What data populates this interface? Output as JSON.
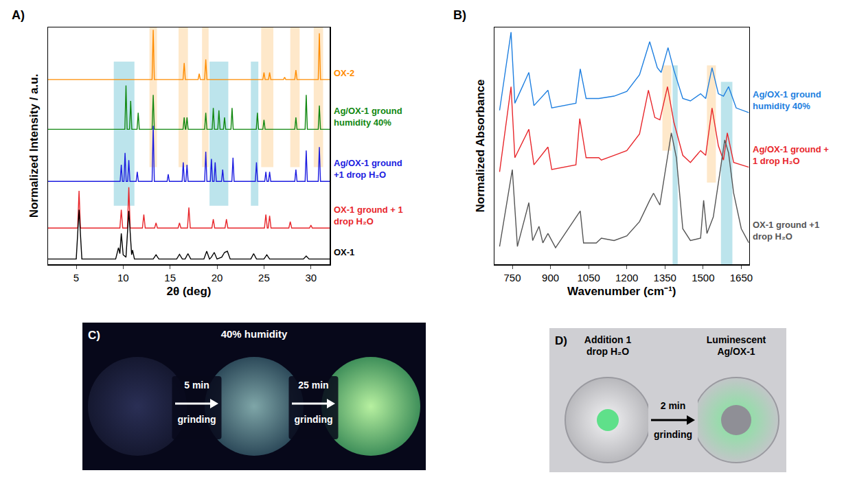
{
  "chart_data": [
    {
      "panel": "A)",
      "type": "line",
      "x_label": "2θ (deg)",
      "y_label": "Normalized Intensity / a.u.",
      "xlim": [
        2,
        32
      ],
      "xticks": [
        5,
        10,
        15,
        20,
        25,
        30
      ],
      "ylim": [
        0,
        10
      ],
      "yticks": [],
      "tick_labels": "x",
      "grid": false,
      "highlights": [
        {
          "x0": 9.0,
          "x1": 11.2,
          "y0": 2.47,
          "y1": 8.56,
          "color": "#a6dbe6"
        },
        {
          "x0": 19.2,
          "x1": 21.2,
          "y0": 2.47,
          "y1": 8.56,
          "color": "#a6dbe6"
        },
        {
          "x0": 23.6,
          "x1": 24.4,
          "y0": 2.47,
          "y1": 8.56,
          "color": "#a6dbe6"
        },
        {
          "x0": 12.8,
          "x1": 13.6,
          "y0": 4.1,
          "y1": 10,
          "color": "#fde0b8"
        },
        {
          "x0": 15.9,
          "x1": 16.9,
          "y0": 4.1,
          "y1": 10,
          "color": "#fde0b8"
        },
        {
          "x0": 18.4,
          "x1": 19.1,
          "y0": 4.1,
          "y1": 10,
          "color": "#fde0b8"
        },
        {
          "x0": 24.7,
          "x1": 26.0,
          "y0": 4.1,
          "y1": 10,
          "color": "#fde0b8"
        },
        {
          "x0": 27.8,
          "x1": 28.8,
          "y0": 4.1,
          "y1": 10,
          "color": "#fde0b8"
        },
        {
          "x0": 30.3,
          "x1": 31.3,
          "y0": 4.1,
          "y1": 10,
          "color": "#fde0b8"
        }
      ],
      "series": [
        {
          "name": "OX-2",
          "color": "#ff8c00",
          "x": [
            2,
            13.08,
            13.2,
            13.32,
            16.38,
            16.5,
            16.62,
            17.98,
            18.1,
            18.22,
            18.68,
            18.8,
            18.92,
            24.88,
            25.0,
            25.12,
            25.48,
            25.6,
            25.72,
            27.08,
            27.2,
            27.32,
            28.28,
            28.4,
            28.52,
            30.78,
            30.9,
            31.02,
            32
          ],
          "values": [
            7.8,
            7.8,
            9.9,
            7.8,
            7.8,
            8.5,
            7.8,
            7.8,
            8.05,
            7.8,
            7.8,
            8.65,
            7.8,
            7.8,
            8.1,
            7.8,
            7.8,
            8.1,
            7.8,
            7.8,
            7.9,
            7.8,
            7.8,
            8.2,
            7.8,
            7.8,
            9.75,
            7.8,
            7.8
          ]
        },
        {
          "name": "Ag/OX-1 ground humidity 40%",
          "color": "#118811",
          "x": [
            2,
            10.18,
            10.3,
            10.42,
            10.68,
            10.8,
            10.92,
            11.48,
            11.6,
            11.72,
            13.08,
            13.2,
            13.32,
            16.38,
            16.5,
            16.62,
            16.68,
            16.8,
            16.92,
            18.68,
            18.8,
            18.92,
            19.48,
            19.6,
            19.72,
            20.08,
            20.2,
            20.32,
            20.68,
            20.8,
            20.92,
            21.48,
            21.6,
            21.72,
            24.18,
            24.3,
            24.42,
            24.88,
            25.0,
            25.12,
            28.28,
            28.4,
            28.52,
            29.38,
            29.5,
            29.62,
            30.78,
            30.9,
            31.02,
            32
          ],
          "values": [
            5.7,
            5.7,
            7.55,
            5.7,
            5.7,
            6.9,
            5.7,
            5.7,
            6.4,
            5.7,
            5.7,
            7.15,
            5.7,
            5.7,
            6.2,
            5.7,
            5.7,
            6.2,
            5.7,
            5.7,
            6.4,
            5.7,
            5.7,
            6.6,
            5.7,
            5.7,
            6.5,
            5.7,
            5.7,
            6.2,
            5.7,
            5.7,
            6.6,
            5.7,
            5.7,
            6.4,
            5.7,
            5.7,
            6.1,
            5.7,
            5.7,
            6.2,
            5.7,
            5.7,
            7.15,
            5.7,
            5.7,
            6.7,
            5.7,
            5.7
          ]
        },
        {
          "name": "Ag/OX-1 ground +1 drop H₂O",
          "color": "#1c1ce0",
          "x": [
            2,
            9.68,
            9.8,
            9.92,
            10.08,
            10.2,
            10.32,
            10.48,
            10.6,
            10.72,
            11.38,
            11.5,
            11.62,
            13.08,
            13.2,
            13.32,
            14.68,
            14.8,
            14.92,
            16.28,
            16.4,
            16.52,
            16.68,
            16.8,
            16.92,
            18.68,
            18.8,
            18.92,
            19.28,
            19.4,
            19.52,
            19.68,
            19.8,
            19.92,
            20.48,
            20.6,
            20.72,
            21.58,
            21.7,
            21.82,
            24.08,
            24.2,
            24.32,
            25.08,
            25.2,
            25.32,
            25.48,
            25.6,
            25.72,
            28.28,
            28.4,
            28.52,
            29.38,
            29.5,
            29.62,
            30.78,
            30.9,
            31.02,
            32
          ],
          "values": [
            3.5,
            3.5,
            4.2,
            3.5,
            3.5,
            4.7,
            3.5,
            3.5,
            4.4,
            3.5,
            3.5,
            3.9,
            3.5,
            3.5,
            5.85,
            3.5,
            3.5,
            3.8,
            3.5,
            3.5,
            4.3,
            3.5,
            3.5,
            4.2,
            3.5,
            3.5,
            4.75,
            3.5,
            3.5,
            4.45,
            3.5,
            3.5,
            4.3,
            3.5,
            3.5,
            4.0,
            3.5,
            3.5,
            4.5,
            3.5,
            3.5,
            4.3,
            3.5,
            3.5,
            3.9,
            3.5,
            3.5,
            3.9,
            3.5,
            3.5,
            4.0,
            3.5,
            3.5,
            4.8,
            3.5,
            3.5,
            4.95,
            3.5,
            3.5
          ]
        },
        {
          "name": "OX-1 ground + 1 drop H₂O",
          "color": "#e8262b",
          "x": [
            2,
            5.15,
            5.3,
            5.45,
            9.65,
            9.8,
            9.95,
            10.45,
            10.6,
            10.75,
            12.05,
            12.2,
            12.35,
            13.35,
            13.5,
            13.65,
            15.85,
            16.0,
            16.15,
            16.85,
            17.0,
            17.15,
            19.45,
            19.6,
            19.75,
            20.85,
            21.0,
            21.15,
            25.05,
            25.2,
            25.35,
            25.45,
            25.6,
            25.75,
            27.65,
            27.8,
            27.95,
            29.85,
            30.0,
            30.15,
            32
          ],
          "values": [
            1.53,
            1.53,
            3.1,
            1.53,
            1.53,
            2.3,
            1.53,
            1.53,
            3.25,
            1.53,
            1.53,
            2.1,
            1.53,
            1.53,
            1.75,
            1.53,
            1.53,
            1.75,
            1.53,
            1.53,
            2.4,
            1.53,
            1.53,
            1.9,
            1.53,
            1.53,
            1.9,
            1.53,
            1.53,
            2.1,
            1.53,
            1.53,
            2.05,
            1.53,
            1.53,
            1.8,
            1.53,
            1.53,
            1.65,
            1.53,
            1.53
          ]
        },
        {
          "name": "OX-1",
          "color": "#000000",
          "x": [
            2,
            5.0,
            5.3,
            5.6,
            9.2,
            9.5,
            9.65,
            9.8,
            10.0,
            10.3,
            10.6,
            10.9,
            11.0,
            11.2,
            13.2,
            13.5,
            13.8,
            15.7,
            16.0,
            16.3,
            16.6,
            16.9,
            17.2,
            18.6,
            18.9,
            19.2,
            19.4,
            19.7,
            20.0,
            20.5,
            20.8,
            21.1,
            21.4,
            23.6,
            23.9,
            24.2,
            25.0,
            25.3,
            25.6,
            29.2,
            29.5,
            29.8,
            32
          ],
          "values": [
            0.22,
            0.22,
            2.3,
            0.22,
            0.22,
            0.7,
            0.45,
            1.3,
            0.4,
            0.3,
            2.25,
            0.4,
            0.6,
            0.22,
            0.22,
            0.4,
            0.22,
            0.22,
            0.42,
            0.22,
            0.22,
            0.45,
            0.22,
            0.22,
            0.55,
            0.22,
            0.3,
            0.5,
            0.22,
            0.3,
            0.5,
            0.55,
            0.22,
            0.22,
            0.45,
            0.22,
            0.22,
            0.4,
            0.22,
            0.22,
            0.35,
            0.22,
            0.22
          ]
        }
      ]
    },
    {
      "panel": "B)",
      "type": "line",
      "x_label": "Wavenumber (cm⁻¹)",
      "y_label": "Normalized Absorbance",
      "xlim": [
        680,
        1680
      ],
      "xticks": [
        750,
        900,
        1050,
        1200,
        1350,
        1500,
        1650
      ],
      "ylim": [
        0,
        10
      ],
      "yticks": [],
      "tick_labels": "x",
      "grid": false,
      "highlights": [
        {
          "x0": 1340,
          "x1": 1375,
          "y0": 4.8,
          "y1": 8.4,
          "color": "#fde0b8"
        },
        {
          "x0": 1380,
          "x1": 1400,
          "y0": 0,
          "y1": 8.4,
          "color": "#a6dbe6"
        },
        {
          "x0": 1515,
          "x1": 1550,
          "y0": 3.45,
          "y1": 8.4,
          "color": "#fde0b8"
        },
        {
          "x0": 1570,
          "x1": 1615,
          "y0": 0,
          "y1": 7.7,
          "color": "#a6dbe6"
        }
      ],
      "series": [
        {
          "name": "Ag/OX-1 ground humidity 40%",
          "color": "#1e7fe0",
          "x": [
            700,
            745,
            760,
            815,
            835,
            890,
            905,
            1000,
            1017,
            1040,
            1090,
            1150,
            1200,
            1250,
            1290,
            1320,
            1335,
            1362,
            1385,
            1420,
            1450,
            1490,
            1510,
            1535,
            1560,
            1580,
            1600,
            1630,
            1680
          ],
          "values": [
            6.5,
            9.8,
            6.8,
            8.1,
            6.7,
            7.35,
            6.6,
            6.8,
            8.25,
            7.0,
            7.0,
            7.1,
            7.3,
            8.0,
            9.4,
            8.3,
            8.1,
            9.15,
            8.2,
            7.0,
            6.9,
            7.2,
            7.0,
            8.3,
            7.2,
            7.1,
            7.5,
            6.6,
            6.4
          ]
        },
        {
          "name": "Ag/OX-1 ground + 1 drop H₂O",
          "color": "#e8262b",
          "x": [
            700,
            745,
            760,
            815,
            835,
            890,
            905,
            1000,
            1015,
            1040,
            1090,
            1100,
            1150,
            1200,
            1250,
            1285,
            1310,
            1330,
            1360,
            1385,
            1420,
            1450,
            1490,
            1510,
            1535,
            1560,
            1580,
            1595,
            1620,
            1680
          ],
          "values": [
            3.9,
            7.5,
            4.5,
            5.7,
            4.2,
            4.95,
            4.0,
            4.2,
            6.15,
            4.5,
            4.5,
            4.4,
            4.6,
            4.8,
            5.5,
            7.35,
            6.2,
            6.1,
            7.5,
            6.0,
            4.6,
            4.3,
            4.8,
            4.6,
            6.6,
            5.0,
            4.4,
            5.55,
            4.3,
            4.1
          ]
        },
        {
          "name": "OX-1 ground +1 drop H₂O",
          "color": "#555555",
          "x": [
            700,
            750,
            770,
            815,
            830,
            855,
            870,
            890,
            920,
            1017,
            1030,
            1080,
            1100,
            1150,
            1200,
            1250,
            1290,
            1305,
            1330,
            1375,
            1395,
            1420,
            1450,
            1490,
            1502,
            1515,
            1540,
            1560,
            1585,
            1600,
            1620,
            1650,
            1680
          ],
          "values": [
            0.75,
            4.0,
            0.75,
            2.6,
            1.0,
            1.6,
            0.9,
            1.3,
            0.7,
            2.25,
            0.9,
            0.9,
            1.1,
            1.0,
            1.2,
            1.8,
            2.7,
            3.0,
            2.5,
            5.55,
            4.5,
            1.5,
            1.0,
            1.1,
            2.7,
            1.3,
            2.0,
            3.5,
            5.25,
            4.7,
            3.0,
            1.5,
            0.9
          ]
        }
      ]
    }
  ],
  "photos": [
    {
      "panel": "C)",
      "captions": [
        "40% humidity"
      ],
      "steps": [
        "5 min grinding",
        "25 min grinding"
      ]
    },
    {
      "panel": "D)",
      "captions": [
        "Addition 1 drop H₂O",
        "Luminescent Ag/OX-1"
      ],
      "steps": [
        "2 min grinding"
      ]
    }
  ]
}
